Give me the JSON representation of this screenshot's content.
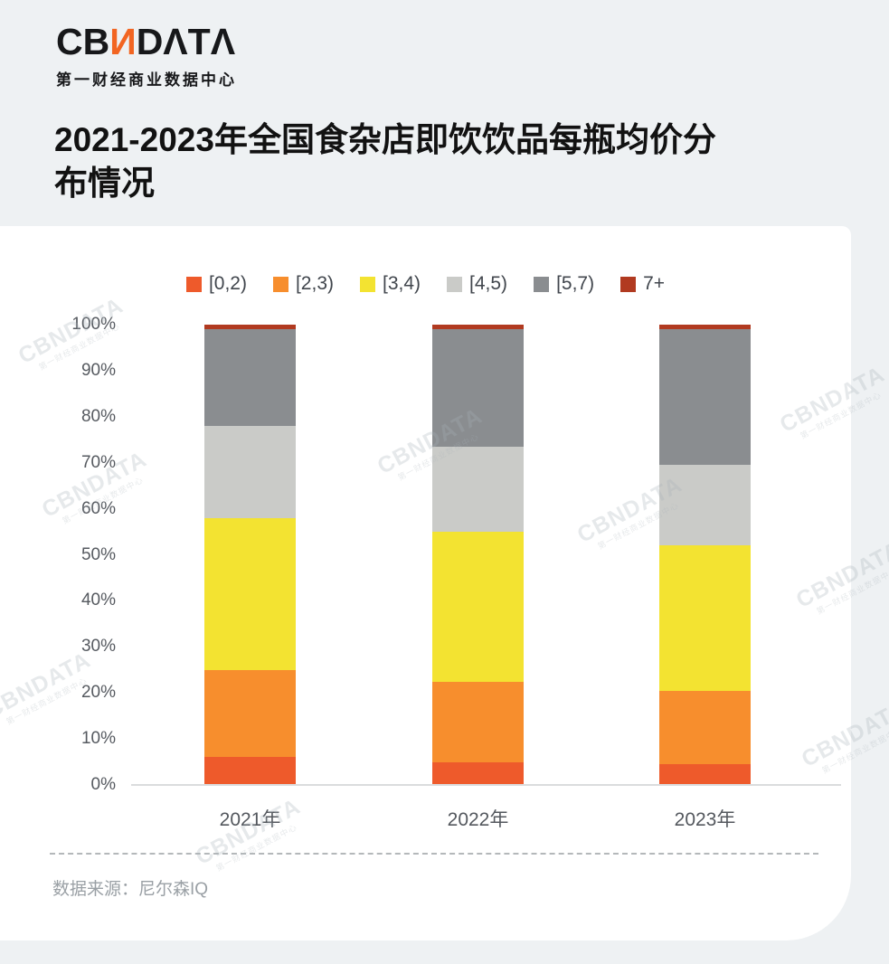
{
  "page": {
    "logo_cb": "CB",
    "logo_n": "И",
    "logo_data": "DΛTΛ",
    "logo_subtitle": "第一财经商业数据中心",
    "title": "2021-2023年全国食杂店即饮饮品每瓶均价分布情况",
    "source_label": "数据来源：尼尔森IQ",
    "watermark_line1": "CBNDATA",
    "watermark_line2": "第一财经商业数据中心"
  },
  "colors": {
    "page_background": "#eef1f3",
    "card_background": "#ffffff",
    "logo_accent": "#f26522",
    "axis_label": "#565a60",
    "axis_line": "#dadcdd",
    "legend_text": "#41464d",
    "source_text": "#9aa0a5"
  },
  "chart_data": {
    "type": "bar",
    "stacked": true,
    "unit": "%",
    "title": "2021-2023年全国食杂店即饮饮品每瓶均价分布情况",
    "categories": [
      "2021年",
      "2022年",
      "2023年"
    ],
    "series": [
      {
        "name": "[0,2)",
        "color": "#ee5a2b",
        "values": [
          6,
          5,
          4.5
        ]
      },
      {
        "name": "[2,3)",
        "color": "#f78e2d",
        "values": [
          19,
          17.5,
          16
        ]
      },
      {
        "name": "[3,4)",
        "color": "#f3e331",
        "values": [
          33,
          32.5,
          31.5
        ]
      },
      {
        "name": "[4,5)",
        "color": "#cacbc8",
        "values": [
          20,
          18.5,
          17.5
        ]
      },
      {
        "name": "[5,7)",
        "color": "#8a8d90",
        "values": [
          21,
          25.5,
          29.5
        ]
      },
      {
        "name": "7+",
        "color": "#b13a20",
        "values": [
          1,
          1,
          1
        ]
      }
    ],
    "y_ticks": [
      "100%",
      "90%",
      "80%",
      "70%",
      "60%",
      "50%",
      "40%",
      "30%",
      "20%",
      "10%",
      "0%"
    ],
    "ylim": [
      0,
      100
    ],
    "legend_position": "top",
    "grid": false,
    "source": "数据来源：尼尔森IQ"
  }
}
